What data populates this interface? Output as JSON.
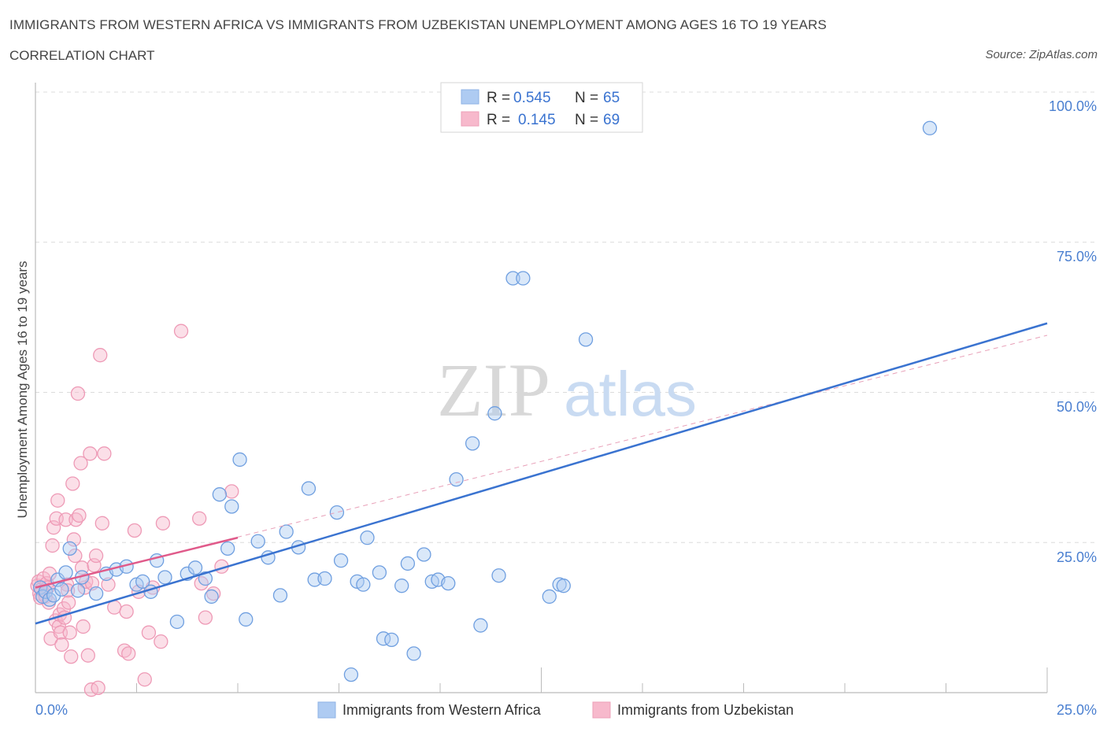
{
  "title": "IMMIGRANTS FROM WESTERN AFRICA VS IMMIGRANTS FROM UZBEKISTAN UNEMPLOYMENT AMONG AGES 16 TO 19 YEARS",
  "subtitle": "CORRELATION CHART",
  "source": "Source: ZipAtlas.com",
  "watermark": {
    "zip": "ZIP",
    "atlas": "atlas"
  },
  "legend": [
    {
      "r_label": "R =",
      "r_value": "0.545",
      "n_label": "N =",
      "n_value": "65",
      "color": "#aecbf2"
    },
    {
      "r_label": "R =",
      "r_value": "0.145",
      "n_label": "N =",
      "n_value": "69",
      "color": "#f7b9cc"
    }
  ],
  "chart_data": {
    "type": "scatter",
    "ylabel": "Unemployment Among Ages 16 to 19 years",
    "xlim": [
      0,
      25
    ],
    "ylim": [
      0,
      100
    ],
    "x_tick_labels": [
      "0.0%",
      "25.0%"
    ],
    "y_tick_labels": [
      "25.0%",
      "50.0%",
      "75.0%",
      "100.0%"
    ],
    "grid": true,
    "legend_position": "top-center",
    "series": [
      {
        "name": "Immigrants from Western Africa",
        "color": "#3a73d0",
        "fill": "#aecbf2",
        "trend": {
          "x": [
            0,
            25
          ],
          "y": [
            11.5,
            61.5
          ]
        },
        "points": [
          [
            0.12,
            17.5
          ],
          [
            0.18,
            16.0
          ],
          [
            0.25,
            16.8
          ],
          [
            0.35,
            15.5
          ],
          [
            0.45,
            16.2
          ],
          [
            0.55,
            18.8
          ],
          [
            0.65,
            17.2
          ],
          [
            0.75,
            20.0
          ],
          [
            0.85,
            24.0
          ],
          [
            1.05,
            17.0
          ],
          [
            1.15,
            19.2
          ],
          [
            1.5,
            16.5
          ],
          [
            1.75,
            19.8
          ],
          [
            2.0,
            20.5
          ],
          [
            2.25,
            21.0
          ],
          [
            2.5,
            18.0
          ],
          [
            2.65,
            18.5
          ],
          [
            2.85,
            16.8
          ],
          [
            3.0,
            22.0
          ],
          [
            3.2,
            19.2
          ],
          [
            3.5,
            11.8
          ],
          [
            3.75,
            19.8
          ],
          [
            3.95,
            20.8
          ],
          [
            4.2,
            19.0
          ],
          [
            4.35,
            16.0
          ],
          [
            4.55,
            33.0
          ],
          [
            4.75,
            24.0
          ],
          [
            4.85,
            31.0
          ],
          [
            5.05,
            38.8
          ],
          [
            5.2,
            12.2
          ],
          [
            5.5,
            25.2
          ],
          [
            5.75,
            22.5
          ],
          [
            6.05,
            16.2
          ],
          [
            6.2,
            26.8
          ],
          [
            6.5,
            24.2
          ],
          [
            6.75,
            34.0
          ],
          [
            6.9,
            18.8
          ],
          [
            7.15,
            19.0
          ],
          [
            7.45,
            30.0
          ],
          [
            7.55,
            22.0
          ],
          [
            7.8,
            3.0
          ],
          [
            7.95,
            18.5
          ],
          [
            8.1,
            18.0
          ],
          [
            8.2,
            25.8
          ],
          [
            8.5,
            20.0
          ],
          [
            8.6,
            9.0
          ],
          [
            8.8,
            8.8
          ],
          [
            9.05,
            17.8
          ],
          [
            9.2,
            21.5
          ],
          [
            9.35,
            6.5
          ],
          [
            9.6,
            23.0
          ],
          [
            9.8,
            18.5
          ],
          [
            9.95,
            18.8
          ],
          [
            10.2,
            18.2
          ],
          [
            10.4,
            35.5
          ],
          [
            10.8,
            41.5
          ],
          [
            11.0,
            11.2
          ],
          [
            11.35,
            46.5
          ],
          [
            11.45,
            19.5
          ],
          [
            11.8,
            69.0
          ],
          [
            12.05,
            69.0
          ],
          [
            12.7,
            16.0
          ],
          [
            12.95,
            18.0
          ],
          [
            13.05,
            17.8
          ],
          [
            13.6,
            58.8
          ],
          [
            22.1,
            94.0
          ]
        ]
      },
      {
        "name": "Immigrants from Uzbekistan",
        "color": "#e05a8a",
        "fill": "#f7b9cc",
        "trend": {
          "x": [
            0,
            5.0
          ],
          "y": [
            17.5,
            25.8
          ]
        },
        "trend_extended": {
          "x": [
            0,
            25
          ],
          "y": [
            17.5,
            59.5
          ]
        },
        "points": [
          [
            0.05,
            17.8
          ],
          [
            0.08,
            18.5
          ],
          [
            0.1,
            16.5
          ],
          [
            0.12,
            15.8
          ],
          [
            0.15,
            17.2
          ],
          [
            0.2,
            19.0
          ],
          [
            0.25,
            16.0
          ],
          [
            0.28,
            18.2
          ],
          [
            0.3,
            17.5
          ],
          [
            0.33,
            15.0
          ],
          [
            0.35,
            19.8
          ],
          [
            0.38,
            9.0
          ],
          [
            0.42,
            24.5
          ],
          [
            0.45,
            27.5
          ],
          [
            0.5,
            12.0
          ],
          [
            0.52,
            29.0
          ],
          [
            0.55,
            32.0
          ],
          [
            0.58,
            11.0
          ],
          [
            0.6,
            13.0
          ],
          [
            0.62,
            10.0
          ],
          [
            0.65,
            8.0
          ],
          [
            0.7,
            14.0
          ],
          [
            0.72,
            12.5
          ],
          [
            0.75,
            28.8
          ],
          [
            0.78,
            18.0
          ],
          [
            0.8,
            17.0
          ],
          [
            0.82,
            15.0
          ],
          [
            0.85,
            10.0
          ],
          [
            0.88,
            6.0
          ],
          [
            0.92,
            34.8
          ],
          [
            0.95,
            25.5
          ],
          [
            0.98,
            22.8
          ],
          [
            1.0,
            28.8
          ],
          [
            1.05,
            49.8
          ],
          [
            1.08,
            29.5
          ],
          [
            1.12,
            38.2
          ],
          [
            1.15,
            20.8
          ],
          [
            1.18,
            11.0
          ],
          [
            1.22,
            17.5
          ],
          [
            1.25,
            18.5
          ],
          [
            1.3,
            6.2
          ],
          [
            1.35,
            39.8
          ],
          [
            1.38,
            0.5
          ],
          [
            1.4,
            18.2
          ],
          [
            1.45,
            21.2
          ],
          [
            1.5,
            22.8
          ],
          [
            1.55,
            0.8
          ],
          [
            1.6,
            56.2
          ],
          [
            1.65,
            28.2
          ],
          [
            1.7,
            39.8
          ],
          [
            1.8,
            18.0
          ],
          [
            1.95,
            14.2
          ],
          [
            2.2,
            7.0
          ],
          [
            2.25,
            13.5
          ],
          [
            2.3,
            6.5
          ],
          [
            2.45,
            27.0
          ],
          [
            2.55,
            16.8
          ],
          [
            2.7,
            2.2
          ],
          [
            2.8,
            10.0
          ],
          [
            2.9,
            17.5
          ],
          [
            3.1,
            8.5
          ],
          [
            3.15,
            28.2
          ],
          [
            3.6,
            60.2
          ],
          [
            4.05,
            29.0
          ],
          [
            4.1,
            18.2
          ],
          [
            4.2,
            12.5
          ],
          [
            4.4,
            16.5
          ],
          [
            4.6,
            21.0
          ],
          [
            4.85,
            33.5
          ]
        ]
      }
    ]
  }
}
